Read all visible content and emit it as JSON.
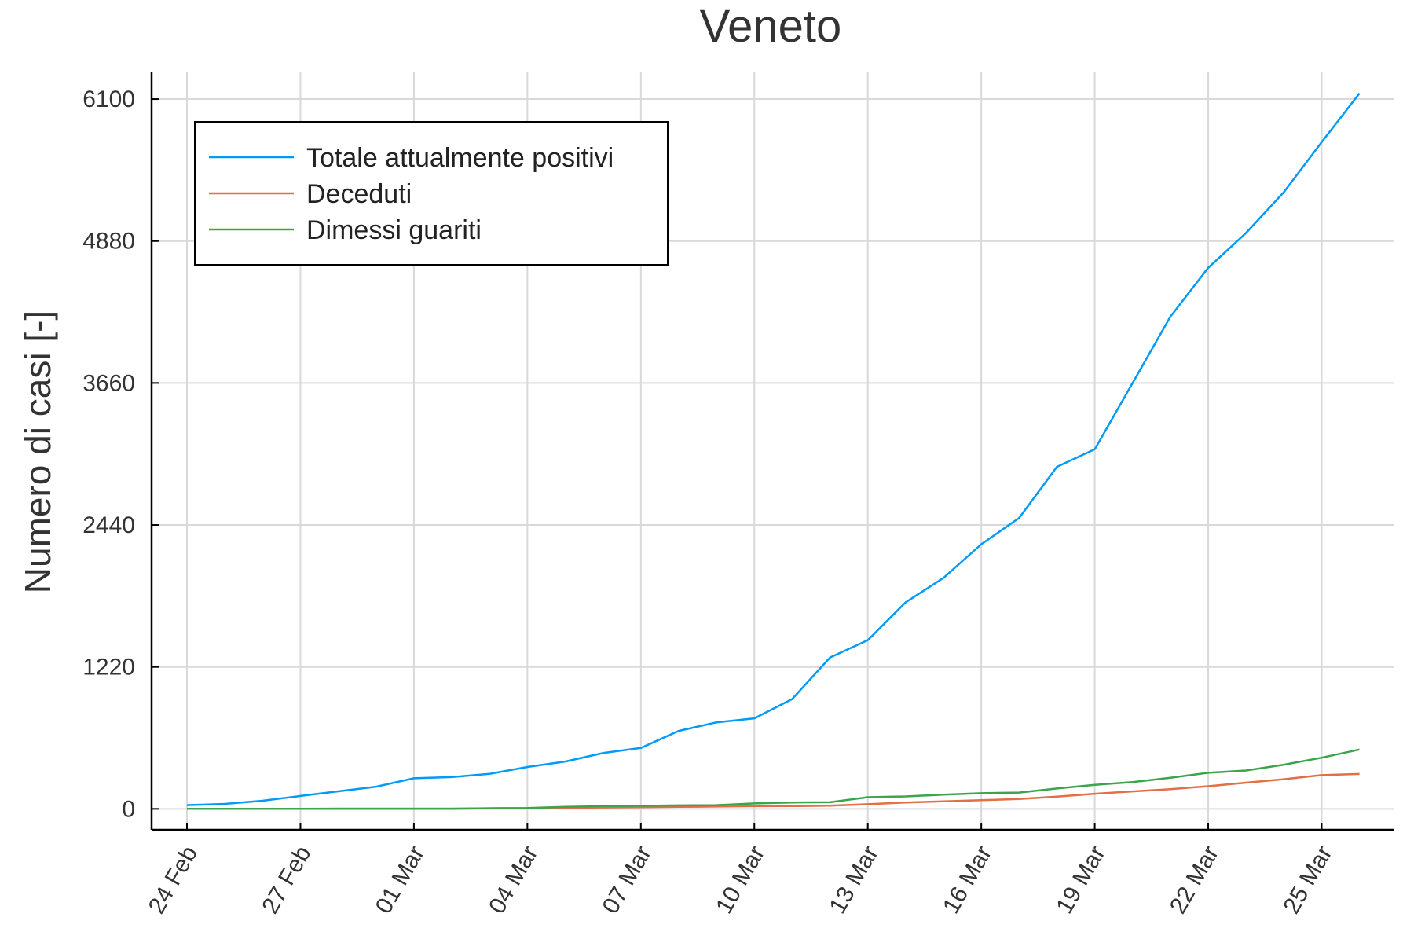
{
  "chart_data": {
    "type": "line",
    "title": "Veneto",
    "xlabel": "",
    "ylabel": "Numero di casi [-]",
    "x_tick_labels": [
      "24 Feb",
      "27 Feb",
      "01 Mar",
      "04 Mar",
      "07 Mar",
      "10 Mar",
      "13 Mar",
      "16 Mar",
      "19 Mar",
      "22 Mar",
      "25 Mar"
    ],
    "y_ticks": [
      0,
      1220,
      2440,
      3660,
      4880,
      6100
    ],
    "ylim": [
      -180,
      6330
    ],
    "grid": true,
    "legend_position": "top-left",
    "x": [
      "24 Feb",
      "25 Feb",
      "26 Feb",
      "27 Feb",
      "28 Feb",
      "29 Feb",
      "01 Mar",
      "02 Mar",
      "03 Mar",
      "04 Mar",
      "05 Mar",
      "06 Mar",
      "07 Mar",
      "08 Mar",
      "09 Mar",
      "10 Mar",
      "11 Mar",
      "12 Mar",
      "13 Mar",
      "14 Mar",
      "15 Mar",
      "16 Mar",
      "17 Mar",
      "18 Mar",
      "19 Mar",
      "20 Mar",
      "21 Mar",
      "22 Mar",
      "23 Mar",
      "24 Mar",
      "25 Mar",
      "26 Mar"
    ],
    "series": [
      {
        "name": "Totale attualmente positivi",
        "color": "#009AF9",
        "values": [
          32,
          43,
          70,
          111,
          151,
          191,
          263,
          273,
          301,
          360,
          407,
          480,
          524,
          670,
          744,
          778,
          944,
          1300,
          1450,
          1775,
          1985,
          2275,
          2500,
          2940,
          3090,
          3660,
          4230,
          4650,
          4950,
          5300,
          5730,
          6150
        ]
      },
      {
        "name": "Deceduti",
        "color": "#E26F46",
        "values": [
          1,
          1,
          1,
          1,
          2,
          2,
          2,
          2,
          4,
          5,
          8,
          12,
          14,
          17,
          20,
          23,
          24,
          28,
          40,
          55,
          65,
          75,
          85,
          105,
          130,
          150,
          170,
          195,
          225,
          255,
          290,
          300
        ]
      },
      {
        "name": "Dimessi guariti",
        "color": "#3DA44D",
        "values": [
          0,
          0,
          0,
          0,
          0,
          0,
          0,
          0,
          6,
          8,
          17,
          23,
          26,
          30,
          32,
          47,
          55,
          57,
          100,
          107,
          122,
          135,
          140,
          175,
          206,
          230,
          268,
          310,
          330,
          380,
          440,
          510
        ]
      }
    ]
  }
}
